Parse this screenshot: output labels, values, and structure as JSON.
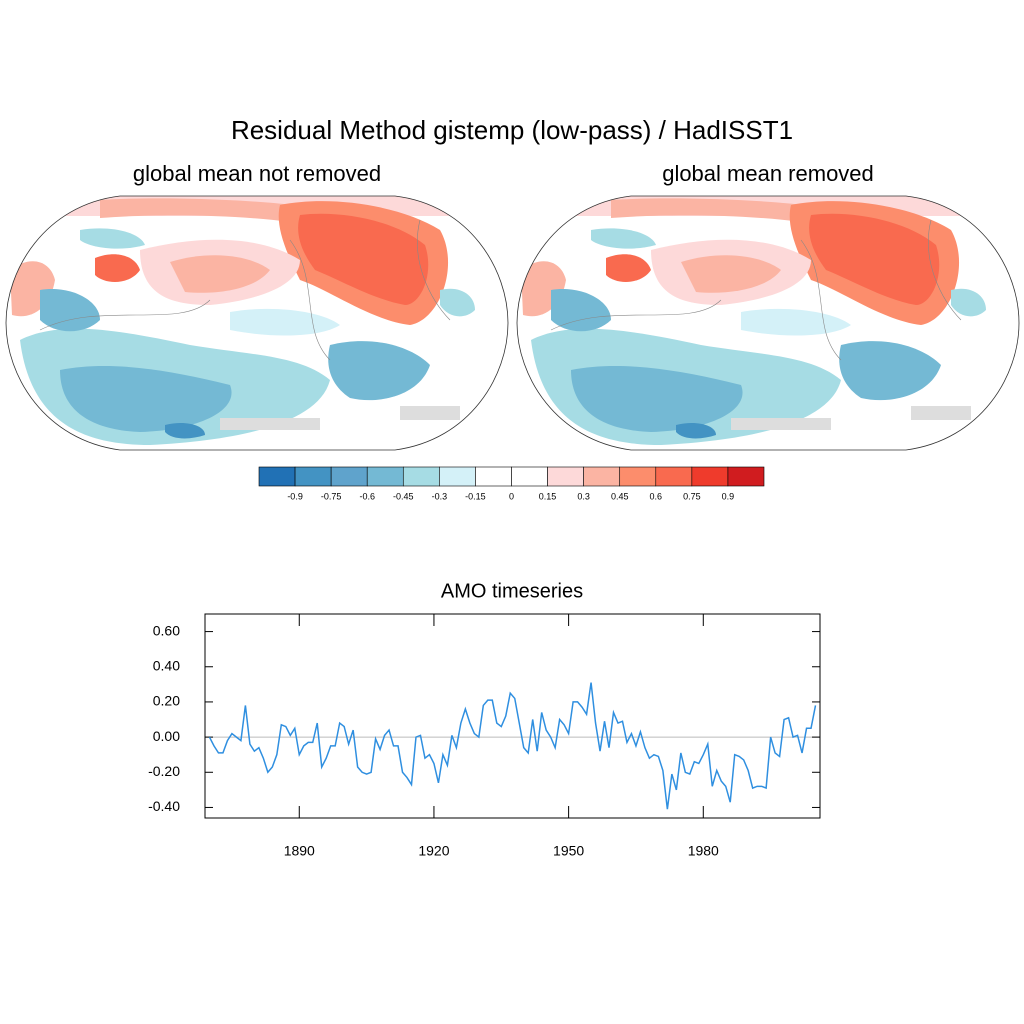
{
  "title": "Residual Method  gistemp  (low-pass) / HadISST1",
  "maps": [
    {
      "title": "global mean not removed"
    },
    {
      "title": "global mean removed"
    }
  ],
  "colorbar": {
    "levels": [
      -0.9,
      -0.75,
      -0.6,
      -0.45,
      -0.3,
      -0.15,
      0,
      0.15,
      0.3,
      0.45,
      0.6,
      0.75,
      0.9
    ],
    "colors": [
      "#2171b5",
      "#4393c3",
      "#5fa3cc",
      "#74b9d4",
      "#a6dce4",
      "#d4f1f8",
      "#ffffff",
      "#ffffff",
      "#fdd9d9",
      "#fbb4a3",
      "#fc8d6c",
      "#f96a4f",
      "#ef3b2c",
      "#d01c1f"
    ]
  },
  "chart_data": {
    "type": "line",
    "title": "AMO timeseries",
    "color": "#2f8fe0",
    "x": [
      1870,
      1871,
      1872,
      1873,
      1874,
      1875,
      1876,
      1877,
      1878,
      1879,
      1880,
      1881,
      1882,
      1883,
      1884,
      1885,
      1886,
      1887,
      1888,
      1889,
      1890,
      1891,
      1892,
      1893,
      1894,
      1895,
      1896,
      1897,
      1898,
      1899,
      1900,
      1901,
      1902,
      1903,
      1904,
      1905,
      1906,
      1907,
      1908,
      1909,
      1910,
      1911,
      1912,
      1913,
      1914,
      1915,
      1916,
      1917,
      1918,
      1919,
      1920,
      1921,
      1922,
      1923,
      1924,
      1925,
      1926,
      1927,
      1928,
      1929,
      1930,
      1931,
      1932,
      1933,
      1934,
      1935,
      1936,
      1937,
      1938,
      1939,
      1940,
      1941,
      1942,
      1943,
      1944,
      1945,
      1946,
      1947,
      1948,
      1949,
      1950,
      1951,
      1952,
      1953,
      1954,
      1955,
      1956,
      1957,
      1958,
      1959,
      1960,
      1961,
      1962,
      1963,
      1964,
      1965,
      1966,
      1967,
      1968,
      1969,
      1970,
      1971,
      1972,
      1973,
      1974,
      1975,
      1976,
      1977,
      1978,
      1979,
      1980,
      1981,
      1982,
      1983,
      1984,
      1985,
      1986,
      1987,
      1988,
      1989,
      1990,
      1991,
      1992,
      1993,
      1994,
      1995,
      1996,
      1997,
      1998,
      1999,
      2000,
      2001,
      2002,
      2003,
      2004,
      2005
    ],
    "values": [
      0.0,
      -0.05,
      -0.09,
      -0.09,
      -0.02,
      0.02,
      0.0,
      -0.02,
      0.18,
      -0.04,
      -0.08,
      -0.06,
      -0.12,
      -0.2,
      -0.17,
      -0.1,
      0.07,
      0.06,
      0.01,
      0.05,
      -0.1,
      -0.05,
      -0.03,
      -0.03,
      0.08,
      -0.17,
      -0.12,
      -0.05,
      -0.05,
      0.08,
      0.06,
      -0.04,
      0.04,
      -0.17,
      -0.2,
      -0.21,
      -0.2,
      -0.01,
      -0.07,
      0.01,
      0.04,
      -0.05,
      -0.05,
      -0.2,
      -0.23,
      -0.27,
      0.0,
      0.01,
      -0.12,
      -0.1,
      -0.15,
      -0.26,
      -0.1,
      -0.16,
      0.01,
      -0.06,
      0.08,
      0.16,
      0.08,
      0.02,
      0.0,
      0.18,
      0.21,
      0.21,
      0.08,
      0.06,
      0.12,
      0.25,
      0.22,
      0.08,
      -0.06,
      -0.09,
      0.1,
      -0.08,
      0.14,
      0.04,
      0.0,
      -0.06,
      0.1,
      0.07,
      0.02,
      0.2,
      0.2,
      0.17,
      0.13,
      0.31,
      0.08,
      -0.08,
      0.09,
      -0.06,
      0.14,
      0.08,
      0.09,
      -0.03,
      0.02,
      -0.05,
      0.03,
      -0.06,
      -0.12,
      -0.1,
      -0.11,
      -0.19,
      -0.41,
      -0.21,
      -0.3,
      -0.09,
      -0.2,
      -0.21,
      -0.14,
      -0.15,
      -0.1,
      -0.04,
      -0.28,
      -0.19,
      -0.25,
      -0.28,
      -0.37,
      -0.1,
      -0.11,
      -0.13,
      -0.19,
      -0.29,
      -0.28,
      -0.28,
      -0.29,
      0.0,
      -0.09,
      -0.11,
      0.1,
      0.11,
      0.0,
      0.01,
      -0.09,
      0.05,
      0.05,
      0.18
    ],
    "xlim": [
      1869,
      2006
    ],
    "xticks": [
      1890,
      1920,
      1950,
      1980
    ],
    "ylim": [
      -0.46,
      0.7
    ],
    "yticks": [
      {
        "value": -0.4,
        "label": "-0.40"
      },
      {
        "value": -0.2,
        "label": "-0.20"
      },
      {
        "value": 0,
        "label": "0.00"
      },
      {
        "value": 0.2,
        "label": "0.20"
      },
      {
        "value": 0.4,
        "label": "0.40"
      },
      {
        "value": 0.6,
        "label": "0.60"
      }
    ]
  }
}
